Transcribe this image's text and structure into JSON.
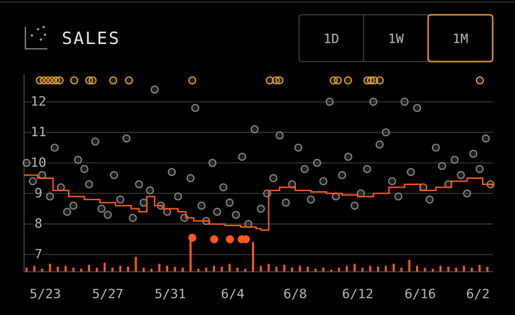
{
  "header": {
    "title": "SALES",
    "ranges": [
      "1D",
      "1W",
      "1M"
    ],
    "selected_index": 2
  },
  "chart_data": {
    "type": "scatter",
    "xlim": [
      -1.36,
      28.66
    ],
    "ylim": [
      6.44,
      12.9
    ],
    "y2lim": [
      0,
      100
    ],
    "xticks": [
      {
        "value": 0,
        "label": "5/23"
      },
      {
        "value": 4,
        "label": "5/27"
      },
      {
        "value": 8,
        "label": "5/31"
      },
      {
        "value": 12,
        "label": "6/4"
      },
      {
        "value": 16,
        "label": "6/8"
      },
      {
        "value": 20,
        "label": "6/12"
      },
      {
        "value": 24,
        "label": "6/16"
      },
      {
        "value": 28,
        "label": "6/2"
      }
    ],
    "yticks": [
      7,
      8,
      9,
      10,
      11,
      12
    ],
    "grid": true,
    "series": [
      {
        "type": "scatter",
        "color": "#8c8c8c",
        "filled": false,
        "x": [
          -1.2,
          -0.8,
          -0.5,
          -0.2,
          0.3,
          0.6,
          1.0,
          1.4,
          1.8,
          2.1,
          2.5,
          2.8,
          3.2,
          3.6,
          4.0,
          4.4,
          4.8,
          5.2,
          5.6,
          6.0,
          6.3,
          6.7,
          7.0,
          7.4,
          7.8,
          8.1,
          8.5,
          8.9,
          9.3,
          9.6,
          10.0,
          10.3,
          10.7,
          11.0,
          11.4,
          11.8,
          12.2,
          12.6,
          13.0,
          13.4,
          13.8,
          14.2,
          14.6,
          15.0,
          15.4,
          15.8,
          16.2,
          16.6,
          17.0,
          17.4,
          17.8,
          18.2,
          18.6,
          19.0,
          19.4,
          19.8,
          20.2,
          20.6,
          21.0,
          21.4,
          21.8,
          22.2,
          22.6,
          23.0,
          23.4,
          23.8,
          24.2,
          24.6,
          25.0,
          25.4,
          25.8,
          26.2,
          26.6,
          27.0,
          27.4,
          27.8,
          28.2,
          28.5
        ],
        "values": [
          10.0,
          9.4,
          9.1,
          9.6,
          8.9,
          10.5,
          9.2,
          8.4,
          8.6,
          10.1,
          9.8,
          9.3,
          10.7,
          8.5,
          8.3,
          9.6,
          8.8,
          10.8,
          8.2,
          9.3,
          8.7,
          9.1,
          12.4,
          8.6,
          8.4,
          9.7,
          8.9,
          8.2,
          9.5,
          11.8,
          8.6,
          8.1,
          10.0,
          8.4,
          9.2,
          8.7,
          8.3,
          10.2,
          8.0,
          11.1,
          8.5,
          9.0,
          9.5,
          10.9,
          8.7,
          9.3,
          10.5,
          9.8,
          8.8,
          10.0,
          9.4,
          12.0,
          8.9,
          9.6,
          10.2,
          8.6,
          9.0,
          9.8,
          12.0,
          10.6,
          11.0,
          9.4,
          8.9,
          12.0,
          9.7,
          11.8,
          9.2,
          8.8,
          10.5,
          9.9,
          9.3,
          10.1,
          9.6,
          9.0,
          10.3,
          9.8,
          10.8,
          9.3
        ]
      },
      {
        "type": "scatter",
        "color": "#f0a22a",
        "filled": false,
        "x": [
          -0.35,
          -0.09,
          0.18,
          0.44,
          0.7,
          0.92,
          1.85,
          2.81,
          3.03,
          4.35,
          5.36,
          9.41,
          14.37,
          14.77,
          14.99,
          18.46,
          18.73,
          19.38,
          20.62,
          20.84,
          21.05,
          21.41,
          27.82
        ],
        "values": [
          12.7,
          12.7,
          12.7,
          12.7,
          12.7,
          12.7,
          12.7,
          12.7,
          12.7,
          12.7,
          12.7,
          12.7,
          12.7,
          12.7,
          12.7,
          12.7,
          12.7,
          12.7,
          12.7,
          12.7,
          12.7,
          12.7,
          12.7
        ]
      },
      {
        "type": "scatter",
        "color": "#ff5a1f",
        "filled": true,
        "x": [
          9.41,
          10.81,
          11.82,
          12.57,
          12.84
        ],
        "values": [
          7.55,
          7.5,
          7.5,
          7.5,
          7.5
        ]
      },
      {
        "type": "step",
        "color": "#ff5a1f",
        "x": [
          -1.36,
          -0.5,
          0.5,
          1.5,
          2.5,
          3.5,
          4.5,
          5.5,
          6.0,
          6.5,
          7.0,
          7.5,
          8.5,
          9.0,
          9.5,
          10.5,
          11.5,
          12.5,
          13.5,
          13.8,
          14.3,
          15.0,
          16.0,
          17.0,
          18.0,
          19.0,
          20.0,
          21.0,
          22.0,
          23.0,
          24.0,
          25.0,
          26.0,
          27.0,
          28.0,
          28.66
        ],
        "values": [
          9.6,
          9.5,
          9.1,
          8.9,
          8.8,
          8.7,
          8.6,
          8.5,
          8.4,
          8.9,
          8.6,
          8.5,
          8.4,
          8.2,
          8.1,
          8.0,
          7.95,
          7.9,
          7.85,
          7.8,
          9.1,
          9.2,
          9.1,
          9.05,
          9.0,
          8.95,
          8.9,
          9.0,
          9.2,
          9.3,
          9.1,
          9.2,
          9.4,
          9.5,
          9.3,
          9.2
        ]
      },
      {
        "type": "bar",
        "axis": "y2",
        "color": "#ff5a1f",
        "x": [
          -1.2,
          -0.7,
          -0.2,
          0.3,
          0.8,
          1.3,
          1.8,
          2.3,
          2.8,
          3.3,
          3.8,
          4.3,
          4.8,
          5.3,
          5.8,
          6.3,
          6.8,
          7.3,
          7.8,
          8.3,
          8.8,
          9.3,
          9.8,
          10.3,
          10.8,
          11.3,
          11.8,
          12.3,
          12.8,
          13.3,
          13.8,
          14.3,
          14.8,
          15.3,
          15.8,
          16.3,
          16.8,
          17.3,
          17.8,
          18.3,
          18.8,
          19.3,
          19.8,
          20.3,
          20.8,
          21.3,
          21.8,
          22.3,
          22.8,
          23.3,
          23.8,
          24.3,
          24.8,
          25.3,
          25.8,
          26.3,
          26.8,
          27.3,
          27.8,
          28.3
        ],
        "values": [
          2,
          3,
          1.5,
          4,
          2.5,
          3,
          2,
          1.5,
          3.5,
          2,
          4.5,
          2,
          3,
          2.5,
          7.5,
          2,
          1.5,
          4,
          3,
          2.5,
          2,
          17,
          1.5,
          2,
          3,
          2.5,
          4,
          2,
          1.5,
          15,
          3,
          4,
          2.5,
          3.5,
          2,
          3,
          2.5,
          1.5,
          2,
          1,
          2,
          3,
          4,
          2,
          3,
          2.5,
          3,
          4,
          2,
          6,
          3,
          2,
          1.5,
          3,
          2.5,
          2,
          3,
          2,
          3.5,
          2.5
        ]
      }
    ]
  }
}
